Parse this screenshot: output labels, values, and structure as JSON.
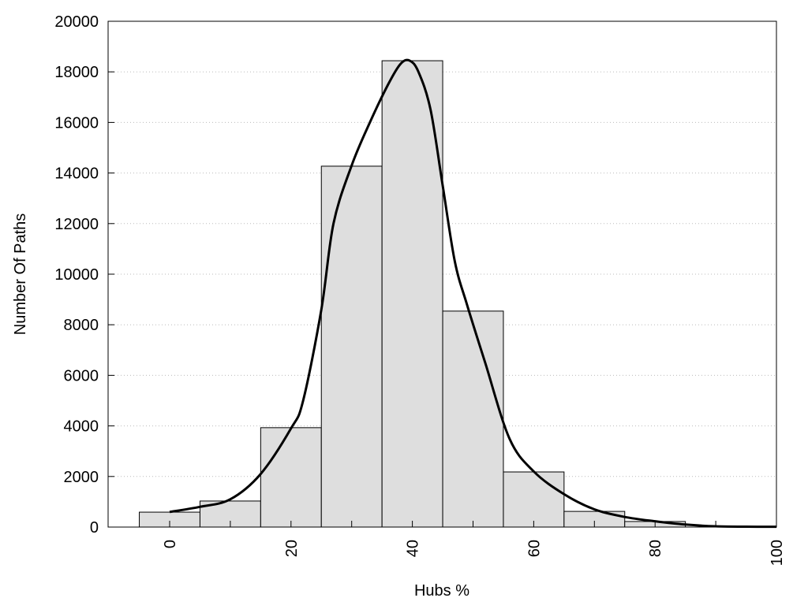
{
  "chart_data": {
    "type": "bar",
    "title": "",
    "xlabel": "Hubs %",
    "ylabel": "Number Of Paths",
    "xlim": [
      -10,
      100
    ],
    "ylim": [
      0,
      20000
    ],
    "grid": "horizontal dotted",
    "x_ticks": [
      "0",
      "20",
      "40",
      "60",
      "80",
      "100"
    ],
    "x_tick_values": [
      0,
      20,
      40,
      60,
      80,
      100
    ],
    "y_ticks": [
      "0",
      "2000",
      "4000",
      "6000",
      "8000",
      "10000",
      "12000",
      "14000",
      "16000",
      "18000",
      "20000"
    ],
    "y_tick_values": [
      0,
      2000,
      4000,
      6000,
      8000,
      10000,
      12000,
      14000,
      16000,
      18000,
      20000
    ],
    "bin_width": 10,
    "bins": [
      0,
      10,
      20,
      30,
      40,
      50,
      60,
      70,
      80
    ],
    "values": [
      590,
      1030,
      3930,
      14270,
      18440,
      8540,
      2180,
      620,
      220
    ],
    "bar_color": "#dedede",
    "curve": {
      "x": [
        0,
        5,
        10,
        15,
        20,
        22,
        25,
        27,
        30,
        33,
        36,
        38,
        39.5,
        41,
        43,
        45,
        47,
        49,
        52,
        56,
        60,
        65,
        70,
        75,
        80,
        85,
        90,
        95,
        100
      ],
      "y": [
        600,
        800,
        1100,
        2100,
        3900,
        5000,
        8600,
        12000,
        14300,
        16000,
        17500,
        18300,
        18450,
        18000,
        16500,
        13500,
        10500,
        8800,
        6500,
        3500,
        2200,
        1300,
        700,
        400,
        230,
        100,
        30,
        15,
        10
      ]
    }
  }
}
